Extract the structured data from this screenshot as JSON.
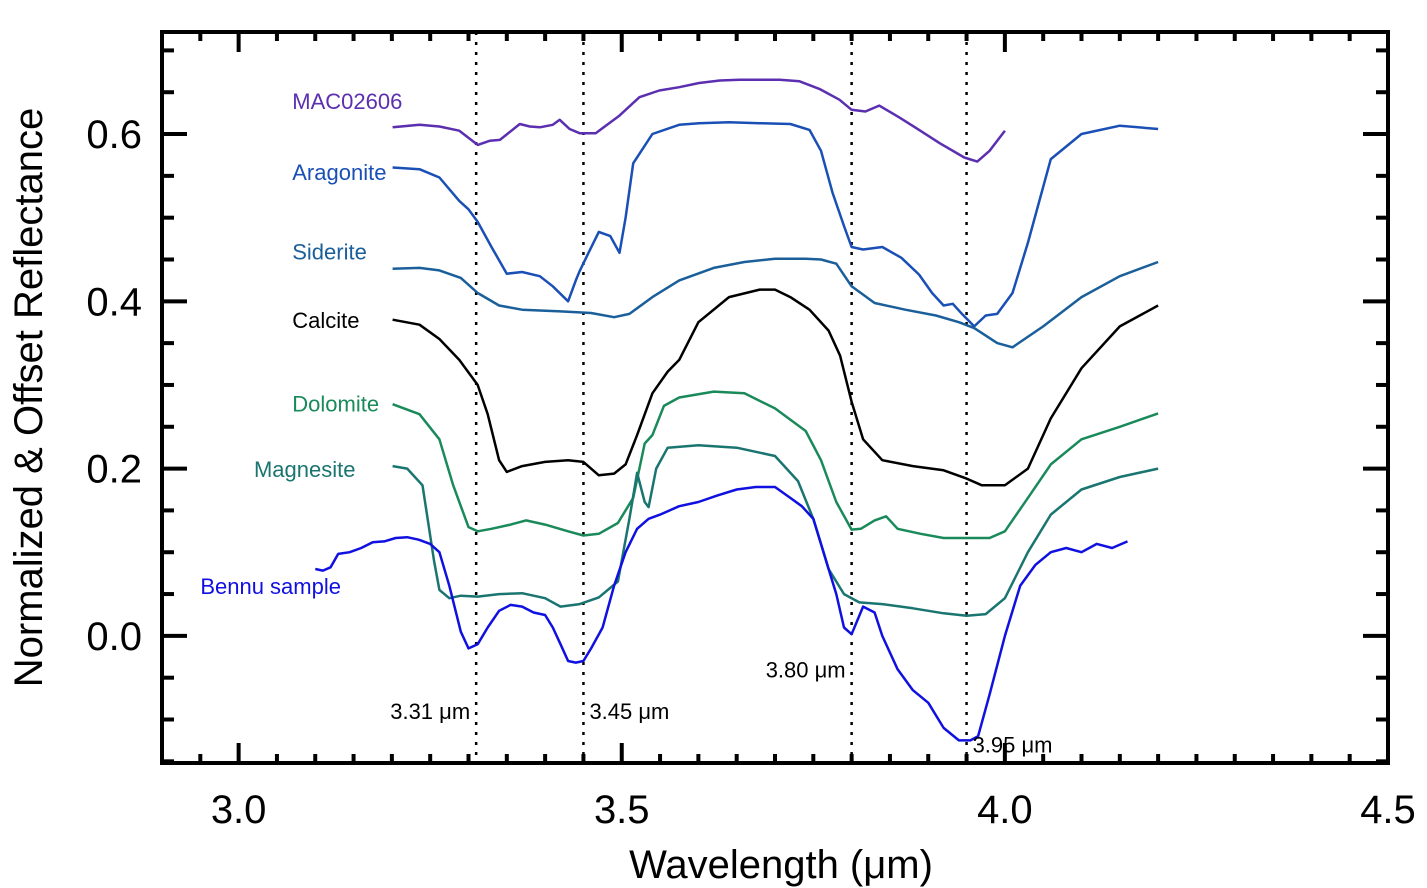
{
  "chart_data": {
    "type": "line",
    "title": "",
    "xlabel": "Wavelength (μm)",
    "ylabel": "Normalized & Offset Reflectance",
    "xlim": [
      2.9,
      4.5
    ],
    "ylim": [
      -0.152,
      0.722
    ],
    "x_ticks": [
      3.0,
      3.5,
      4.0,
      4.5
    ],
    "x_tick_labels": [
      "3.0",
      "3.5",
      "4.0",
      "4.5"
    ],
    "x_minor_step": 0.05,
    "y_ticks": [
      0.0,
      0.2,
      0.4,
      0.6
    ],
    "y_tick_labels": [
      "0.0",
      "0.2",
      "0.4",
      "0.6"
    ],
    "y_minor_step": 0.05,
    "grid": false,
    "legend": "inline labels at left of each curve",
    "reference_lines": [
      {
        "x": 3.31,
        "label": "3.31 μm",
        "label_y": -0.09,
        "label_side": "left"
      },
      {
        "x": 3.45,
        "label": "3.45 μm",
        "label_y": -0.09,
        "label_side": "right"
      },
      {
        "x": 3.8,
        "label": "3.80 μm",
        "label_y": -0.04,
        "label_side": "left"
      },
      {
        "x": 3.95,
        "label": "3.95 μm",
        "label_y": -0.13,
        "label_side": "right"
      }
    ],
    "series": [
      {
        "name": "MAC02606",
        "color": "#5b2fb0",
        "label_x": 3.07,
        "label_y": 0.63,
        "x": [
          3.201,
          3.236,
          3.262,
          3.288,
          3.312,
          3.328,
          3.341,
          3.367,
          3.38,
          3.393,
          3.41,
          3.419,
          3.432,
          3.445,
          3.466,
          3.497,
          3.523,
          3.549,
          3.575,
          3.601,
          3.628,
          3.654,
          3.68,
          3.706,
          3.732,
          3.758,
          3.784,
          3.8,
          3.818,
          3.836,
          3.862,
          3.888,
          3.915,
          3.947,
          3.964,
          3.98,
          4.0
        ],
        "y": [
          0.608,
          0.611,
          0.609,
          0.604,
          0.587,
          0.592,
          0.593,
          0.612,
          0.609,
          0.608,
          0.611,
          0.617,
          0.606,
          0.601,
          0.601,
          0.622,
          0.644,
          0.652,
          0.656,
          0.661,
          0.664,
          0.665,
          0.665,
          0.665,
          0.663,
          0.654,
          0.641,
          0.629,
          0.627,
          0.634,
          0.62,
          0.605,
          0.589,
          0.572,
          0.567,
          0.58,
          0.604
        ]
      },
      {
        "name": "Aragonite",
        "color": "#1a4fb5",
        "label_x": 3.07,
        "label_y": 0.545,
        "x": [
          3.201,
          3.236,
          3.262,
          3.288,
          3.3,
          3.312,
          3.33,
          3.35,
          3.37,
          3.393,
          3.41,
          3.43,
          3.44,
          3.445,
          3.455,
          3.47,
          3.485,
          3.497,
          3.505,
          3.515,
          3.54,
          3.575,
          3.601,
          3.64,
          3.68,
          3.72,
          3.745,
          3.76,
          3.775,
          3.79,
          3.8,
          3.815,
          3.84,
          3.865,
          3.888,
          3.905,
          3.92,
          3.932,
          3.942,
          3.96,
          3.975,
          3.99,
          4.01,
          4.03,
          4.06,
          4.1,
          4.15,
          4.2
        ],
        "y": [
          0.56,
          0.558,
          0.548,
          0.52,
          0.51,
          0.495,
          0.465,
          0.433,
          0.435,
          0.43,
          0.418,
          0.4,
          0.425,
          0.436,
          0.455,
          0.483,
          0.478,
          0.458,
          0.5,
          0.565,
          0.6,
          0.611,
          0.613,
          0.614,
          0.613,
          0.612,
          0.605,
          0.58,
          0.53,
          0.49,
          0.465,
          0.462,
          0.465,
          0.452,
          0.432,
          0.41,
          0.395,
          0.397,
          0.387,
          0.37,
          0.383,
          0.385,
          0.41,
          0.47,
          0.57,
          0.6,
          0.61,
          0.606
        ]
      },
      {
        "name": "Siderite",
        "color": "#1a5f9a",
        "label_x": 3.07,
        "label_y": 0.45,
        "x": [
          3.201,
          3.236,
          3.262,
          3.29,
          3.312,
          3.34,
          3.37,
          3.42,
          3.46,
          3.49,
          3.51,
          3.54,
          3.575,
          3.62,
          3.66,
          3.7,
          3.74,
          3.76,
          3.78,
          3.8,
          3.83,
          3.87,
          3.91,
          3.94,
          3.96,
          3.99,
          4.01,
          4.05,
          4.1,
          4.15,
          4.2
        ],
        "y": [
          0.439,
          0.44,
          0.437,
          0.428,
          0.41,
          0.395,
          0.39,
          0.388,
          0.386,
          0.381,
          0.385,
          0.405,
          0.425,
          0.44,
          0.447,
          0.451,
          0.451,
          0.45,
          0.445,
          0.418,
          0.398,
          0.39,
          0.383,
          0.375,
          0.368,
          0.35,
          0.345,
          0.37,
          0.405,
          0.43,
          0.447
        ]
      },
      {
        "name": "Calcite",
        "color": "#000000",
        "label_x": 3.07,
        "label_y": 0.368,
        "x": [
          3.201,
          3.236,
          3.262,
          3.288,
          3.312,
          3.325,
          3.34,
          3.35,
          3.37,
          3.4,
          3.43,
          3.45,
          3.47,
          3.49,
          3.505,
          3.52,
          3.54,
          3.56,
          3.575,
          3.6,
          3.64,
          3.68,
          3.7,
          3.72,
          3.745,
          3.77,
          3.785,
          3.8,
          3.815,
          3.84,
          3.88,
          3.92,
          3.95,
          3.97,
          4.0,
          4.03,
          4.06,
          4.1,
          4.15,
          4.2
        ],
        "y": [
          0.378,
          0.372,
          0.355,
          0.33,
          0.3,
          0.265,
          0.21,
          0.196,
          0.203,
          0.208,
          0.21,
          0.208,
          0.192,
          0.194,
          0.205,
          0.24,
          0.29,
          0.316,
          0.33,
          0.375,
          0.405,
          0.414,
          0.414,
          0.405,
          0.39,
          0.365,
          0.335,
          0.28,
          0.235,
          0.21,
          0.203,
          0.198,
          0.188,
          0.18,
          0.18,
          0.2,
          0.26,
          0.32,
          0.37,
          0.395
        ]
      },
      {
        "name": "Dolomite",
        "color": "#1a8a5a",
        "label_x": 3.07,
        "label_y": 0.268,
        "x": [
          3.201,
          3.236,
          3.262,
          3.28,
          3.3,
          3.312,
          3.33,
          3.355,
          3.375,
          3.4,
          3.43,
          3.45,
          3.47,
          3.495,
          3.515,
          3.53,
          3.54,
          3.555,
          3.575,
          3.62,
          3.66,
          3.7,
          3.74,
          3.76,
          3.78,
          3.8,
          3.812,
          3.83,
          3.845,
          3.86,
          3.89,
          3.92,
          3.95,
          3.98,
          4.0,
          4.03,
          4.06,
          4.1,
          4.15,
          4.2
        ],
        "y": [
          0.277,
          0.265,
          0.235,
          0.18,
          0.13,
          0.125,
          0.128,
          0.133,
          0.138,
          0.133,
          0.125,
          0.12,
          0.122,
          0.135,
          0.165,
          0.23,
          0.24,
          0.275,
          0.285,
          0.292,
          0.29,
          0.272,
          0.245,
          0.21,
          0.16,
          0.127,
          0.128,
          0.138,
          0.143,
          0.128,
          0.122,
          0.117,
          0.117,
          0.117,
          0.125,
          0.165,
          0.205,
          0.235,
          0.25,
          0.266
        ]
      },
      {
        "name": "Magnesite",
        "color": "#1a7570",
        "label_x": 3.02,
        "label_y": 0.19,
        "x": [
          3.201,
          3.22,
          3.24,
          3.255,
          3.262,
          3.275,
          3.29,
          3.312,
          3.34,
          3.37,
          3.4,
          3.42,
          3.445,
          3.47,
          3.495,
          3.51,
          3.52,
          3.53,
          3.535,
          3.545,
          3.56,
          3.6,
          3.65,
          3.7,
          3.73,
          3.75,
          3.77,
          3.79,
          3.81,
          3.84,
          3.88,
          3.92,
          3.95,
          3.975,
          4.0,
          4.03,
          4.06,
          4.1,
          4.15,
          4.2
        ],
        "y": [
          0.203,
          0.2,
          0.18,
          0.09,
          0.055,
          0.045,
          0.048,
          0.047,
          0.05,
          0.051,
          0.045,
          0.035,
          0.038,
          0.046,
          0.065,
          0.14,
          0.195,
          0.16,
          0.154,
          0.2,
          0.225,
          0.228,
          0.225,
          0.215,
          0.185,
          0.14,
          0.08,
          0.05,
          0.04,
          0.038,
          0.033,
          0.027,
          0.024,
          0.026,
          0.045,
          0.1,
          0.145,
          0.175,
          0.19,
          0.2
        ]
      },
      {
        "name": "Bennu sample",
        "color": "#1010e0",
        "label_x": 2.95,
        "label_y": 0.05,
        "x": [
          3.1,
          3.11,
          3.12,
          3.13,
          3.145,
          3.16,
          3.175,
          3.19,
          3.205,
          3.22,
          3.235,
          3.25,
          3.262,
          3.275,
          3.29,
          3.3,
          3.312,
          3.325,
          3.34,
          3.355,
          3.37,
          3.385,
          3.4,
          3.41,
          3.42,
          3.43,
          3.44,
          3.45,
          3.46,
          3.475,
          3.49,
          3.505,
          3.52,
          3.535,
          3.55,
          3.575,
          3.6,
          3.625,
          3.65,
          3.675,
          3.7,
          3.72,
          3.735,
          3.75,
          3.76,
          3.77,
          3.78,
          3.79,
          3.8,
          3.815,
          3.83,
          3.84,
          3.86,
          3.88,
          3.9,
          3.92,
          3.94,
          3.955,
          3.965,
          3.98,
          4.0,
          4.02,
          4.04,
          4.06,
          4.08,
          4.1,
          4.12,
          4.14,
          4.16
        ],
        "y": [
          0.08,
          0.078,
          0.082,
          0.098,
          0.1,
          0.105,
          0.112,
          0.113,
          0.117,
          0.118,
          0.115,
          0.11,
          0.1,
          0.06,
          0.005,
          -0.015,
          -0.01,
          0.01,
          0.03,
          0.037,
          0.035,
          0.028,
          0.025,
          0.01,
          -0.01,
          -0.03,
          -0.032,
          -0.03,
          -0.015,
          0.01,
          0.06,
          0.1,
          0.128,
          0.14,
          0.145,
          0.155,
          0.16,
          0.168,
          0.175,
          0.178,
          0.178,
          0.165,
          0.155,
          0.14,
          0.11,
          0.08,
          0.05,
          0.01,
          0.002,
          0.035,
          0.028,
          0.0,
          -0.04,
          -0.065,
          -0.08,
          -0.11,
          -0.125,
          -0.125,
          -0.12,
          -0.07,
          0.0,
          0.06,
          0.085,
          0.1,
          0.105,
          0.1,
          0.11,
          0.105,
          0.113
        ]
      }
    ]
  }
}
